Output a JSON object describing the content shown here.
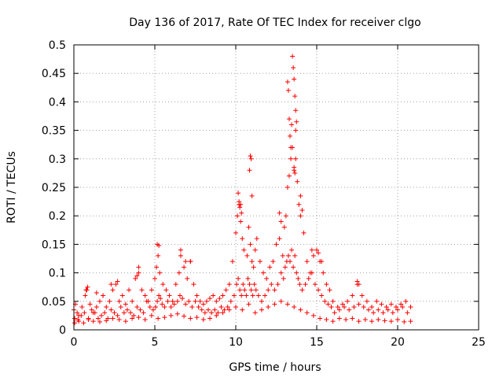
{
  "chart_data": {
    "type": "scatter",
    "title": "Day 136 of 2017, Rate Of TEC Index for receiver clgo",
    "xlabel": "GPS time / hours",
    "ylabel": "ROTI / TECUs",
    "xlim": [
      0,
      25
    ],
    "ylim": [
      0,
      0.5
    ],
    "xticks": [
      "0",
      "5",
      "10",
      "15",
      "20",
      "25"
    ],
    "xtick_values": [
      0,
      5,
      10,
      15,
      20,
      25
    ],
    "yticks": [
      "0",
      "0.05",
      "0.1",
      "0.15",
      "0.2",
      "0.25",
      "0.3",
      "0.35",
      "0.4",
      "0.45",
      "0.5"
    ],
    "ytick_values": [
      0,
      0.05,
      0.1,
      0.15,
      0.2,
      0.25,
      0.3,
      0.35,
      0.4,
      0.45,
      0.5
    ],
    "grid": true,
    "marker": "+",
    "series": [
      {
        "name": "ROTI",
        "color": "#ff0000",
        "x": [
          0.0,
          0.1,
          0.2,
          0.3,
          0.5,
          0.7,
          0.8,
          1.0,
          1.2,
          1.4,
          1.6,
          1.8,
          2.0,
          2.2,
          2.4,
          2.6,
          2.8,
          3.0,
          3.2,
          3.4,
          3.6,
          3.8,
          4.0,
          4.2,
          4.4,
          4.6,
          4.8,
          5.0,
          5.1,
          5.2,
          5.3,
          5.5,
          5.7,
          5.9,
          6.1,
          6.3,
          6.5,
          6.6,
          6.8,
          7.0,
          7.2,
          7.4,
          7.6,
          7.8,
          8.0,
          8.2,
          8.4,
          8.6,
          8.8,
          9.0,
          9.2,
          9.4,
          9.6,
          9.8,
          10.0,
          10.1,
          10.2,
          10.3,
          10.4,
          10.5,
          10.7,
          10.8,
          10.9,
          11.0,
          11.1,
          11.2,
          11.3,
          11.5,
          11.7,
          11.9,
          12.1,
          12.3,
          12.5,
          12.7,
          12.9,
          13.0,
          13.1,
          13.2,
          13.3,
          13.4,
          13.5,
          13.6,
          13.7,
          13.8,
          13.9,
          14.0,
          14.2,
          14.4,
          14.6,
          14.8,
          15.0,
          15.2,
          15.4,
          15.6,
          15.8,
          16.0,
          16.3,
          16.6,
          16.9,
          17.2,
          17.5,
          17.8,
          18.1,
          18.4,
          18.7,
          19.0,
          19.3,
          19.6,
          19.9,
          20.2,
          20.5,
          20.8,
          0.05,
          0.25,
          0.45,
          0.65,
          0.9,
          1.1,
          1.3,
          1.5,
          1.7,
          1.9,
          2.1,
          2.3,
          2.5,
          2.7,
          2.9,
          3.1,
          3.3,
          3.5,
          3.7,
          3.9,
          4.1,
          4.3,
          4.5,
          4.7,
          4.9,
          5.05,
          5.15,
          5.25,
          5.35,
          5.45,
          5.6,
          5.8,
          6.0,
          6.2,
          6.4,
          6.55,
          6.7,
          6.9,
          7.1,
          7.3,
          7.5,
          7.7,
          7.9,
          8.1,
          8.3,
          8.5,
          8.7,
          8.9,
          9.1,
          9.3,
          9.5,
          9.7,
          9.9,
          10.05,
          10.15,
          10.25,
          10.35,
          10.45,
          10.55,
          10.65,
          10.75,
          10.85,
          10.95,
          11.05,
          11.15,
          11.25,
          11.4,
          11.6,
          11.8,
          12.0,
          12.2,
          12.4,
          12.6,
          12.8,
          12.95,
          13.05,
          13.15,
          13.25,
          13.35,
          13.45,
          13.55,
          13.65,
          13.75,
          13.85,
          13.95,
          14.1,
          14.3,
          14.5,
          14.7,
          14.9,
          15.1,
          15.3,
          15.5,
          15.7,
          15.9,
          16.1,
          16.4,
          16.7,
          17.0,
          17.3,
          17.6,
          17.9,
          18.2,
          18.5,
          18.8,
          19.1,
          19.4,
          19.7,
          20.0,
          20.3,
          20.6,
          0.05,
          0.3,
          0.6,
          0.9,
          1.2,
          1.6,
          2.0,
          2.4,
          2.8,
          3.2,
          3.6,
          4.0,
          4.4,
          4.8,
          5.2,
          5.6,
          6.0,
          6.4,
          6.8,
          7.2,
          7.6,
          8.0,
          8.4,
          8.8,
          9.2,
          9.6,
          10.0,
          10.4,
          10.8,
          11.2,
          11.6,
          12.0,
          12.4,
          12.8,
          13.2,
          13.6,
          14.0,
          14.4,
          14.8,
          15.2,
          15.6,
          16.0,
          16.4,
          16.8,
          17.2,
          17.6,
          18.0,
          18.4,
          18.8,
          19.2,
          19.6,
          20.0,
          20.4,
          20.8,
          10.15,
          10.2,
          10.25,
          10.3,
          10.35,
          10.9,
          10.95,
          10.85,
          11.0,
          13.2,
          13.25,
          13.3,
          13.35,
          13.4,
          13.45,
          13.5,
          13.55,
          13.6,
          13.65,
          13.7,
          13.75,
          13.6,
          13.65,
          13.7,
          14.0,
          7.2,
          6.6,
          6.9,
          5.15,
          5.25,
          4.0,
          3.9,
          2.7,
          2.3,
          1.8,
          1.4,
          0.85,
          0.75,
          17.5,
          17.6,
          12.7,
          12.8,
          14.1,
          14.7,
          15.1,
          15.3
        ],
        "y": [
          0.035,
          0.045,
          0.03,
          0.025,
          0.04,
          0.06,
          0.07,
          0.045,
          0.03,
          0.04,
          0.05,
          0.06,
          0.04,
          0.05,
          0.07,
          0.08,
          0.05,
          0.06,
          0.045,
          0.07,
          0.05,
          0.09,
          0.1,
          0.07,
          0.06,
          0.05,
          0.07,
          0.09,
          0.11,
          0.13,
          0.1,
          0.08,
          0.07,
          0.06,
          0.05,
          0.08,
          0.1,
          0.13,
          0.11,
          0.09,
          0.12,
          0.08,
          0.06,
          0.05,
          0.045,
          0.05,
          0.055,
          0.06,
          0.05,
          0.055,
          0.06,
          0.07,
          0.08,
          0.12,
          0.17,
          0.2,
          0.22,
          0.19,
          0.16,
          0.14,
          0.13,
          0.18,
          0.15,
          0.12,
          0.11,
          0.14,
          0.16,
          0.12,
          0.1,
          0.09,
          0.11,
          0.12,
          0.15,
          0.16,
          0.13,
          0.18,
          0.2,
          0.25,
          0.27,
          0.3,
          0.32,
          0.28,
          0.35,
          0.26,
          0.22,
          0.2,
          0.17,
          0.12,
          0.1,
          0.13,
          0.14,
          0.12,
          0.1,
          0.08,
          0.07,
          0.05,
          0.04,
          0.045,
          0.05,
          0.06,
          0.08,
          0.06,
          0.05,
          0.04,
          0.05,
          0.045,
          0.04,
          0.045,
          0.04,
          0.045,
          0.05,
          0.04,
          0.02,
          0.018,
          0.025,
          0.03,
          0.02,
          0.035,
          0.03,
          0.02,
          0.025,
          0.03,
          0.02,
          0.035,
          0.03,
          0.025,
          0.04,
          0.03,
          0.035,
          0.03,
          0.025,
          0.04,
          0.035,
          0.03,
          0.05,
          0.04,
          0.035,
          0.04,
          0.05,
          0.06,
          0.055,
          0.045,
          0.04,
          0.05,
          0.04,
          0.045,
          0.05,
          0.06,
          0.055,
          0.045,
          0.05,
          0.04,
          0.05,
          0.04,
          0.035,
          0.03,
          0.035,
          0.03,
          0.035,
          0.03,
          0.04,
          0.035,
          0.04,
          0.05,
          0.06,
          0.08,
          0.09,
          0.07,
          0.06,
          0.08,
          0.07,
          0.06,
          0.09,
          0.08,
          0.07,
          0.06,
          0.08,
          0.07,
          0.06,
          0.05,
          0.06,
          0.07,
          0.08,
          0.07,
          0.08,
          0.1,
          0.09,
          0.11,
          0.12,
          0.13,
          0.12,
          0.14,
          0.11,
          0.13,
          0.1,
          0.09,
          0.08,
          0.07,
          0.08,
          0.09,
          0.1,
          0.08,
          0.07,
          0.06,
          0.05,
          0.045,
          0.04,
          0.03,
          0.035,
          0.04,
          0.035,
          0.04,
          0.045,
          0.04,
          0.035,
          0.03,
          0.035,
          0.03,
          0.035,
          0.03,
          0.035,
          0.04,
          0.03,
          0.012,
          0.015,
          0.012,
          0.018,
          0.015,
          0.014,
          0.016,
          0.02,
          0.018,
          0.015,
          0.02,
          0.022,
          0.018,
          0.025,
          0.02,
          0.022,
          0.025,
          0.028,
          0.024,
          0.02,
          0.022,
          0.018,
          0.02,
          0.025,
          0.03,
          0.035,
          0.04,
          0.035,
          0.045,
          0.03,
          0.035,
          0.04,
          0.045,
          0.05,
          0.045,
          0.04,
          0.035,
          0.03,
          0.025,
          0.02,
          0.018,
          0.015,
          0.02,
          0.018,
          0.02,
          0.015,
          0.018,
          0.015,
          0.018,
          0.016,
          0.015,
          0.018,
          0.014,
          0.015,
          0.24,
          0.225,
          0.215,
          0.22,
          0.205,
          0.305,
          0.3,
          0.28,
          0.235,
          0.435,
          0.42,
          0.37,
          0.34,
          0.32,
          0.36,
          0.48,
          0.46,
          0.44,
          0.41,
          0.385,
          0.365,
          0.285,
          0.275,
          0.3,
          0.235,
          0.12,
          0.14,
          0.12,
          0.15,
          0.148,
          0.11,
          0.095,
          0.085,
          0.08,
          0.06,
          0.065,
          0.075,
          0.07,
          0.085,
          0.08,
          0.205,
          0.19,
          0.21,
          0.14,
          0.135,
          0.12
        ]
      }
    ]
  }
}
